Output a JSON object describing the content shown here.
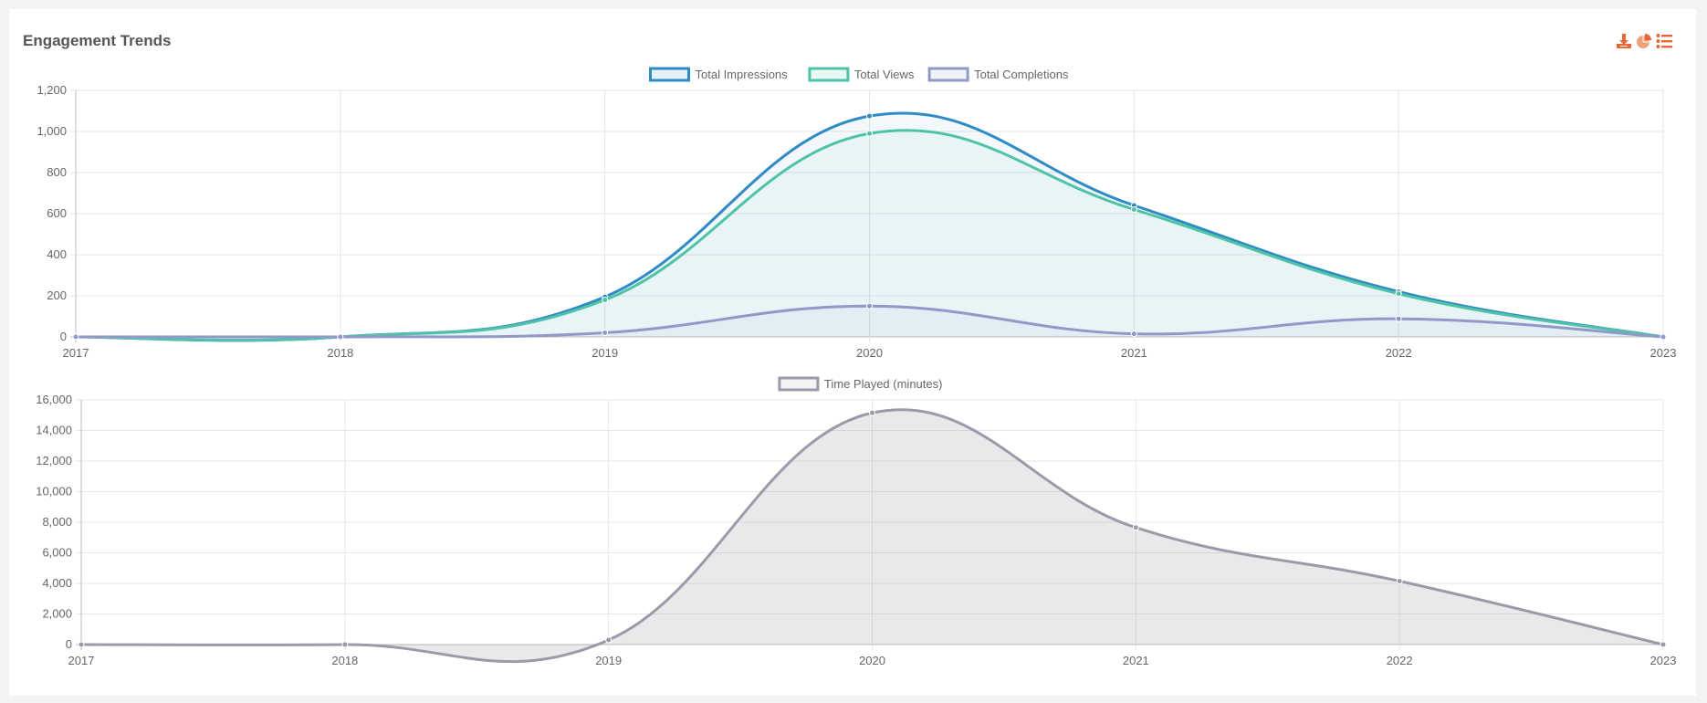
{
  "card": {
    "title": "Engagement Trends"
  },
  "toolbar": {
    "icons": [
      "download-icon",
      "pie-chart-icon",
      "list-icon"
    ],
    "accent": "#e8673a"
  },
  "chart_data": [
    {
      "type": "line",
      "fill": true,
      "x": [
        "2017",
        "2018",
        "2019",
        "2020",
        "2021",
        "2022",
        "2023"
      ],
      "series": [
        {
          "name": "Total Impressions",
          "color": "#2e8bc5",
          "values": [
            0,
            0,
            195,
            1075,
            640,
            220,
            0
          ]
        },
        {
          "name": "Total Views",
          "color": "#4fc3a8",
          "values": [
            0,
            0,
            180,
            990,
            620,
            210,
            0
          ]
        },
        {
          "name": "Total Completions",
          "color": "#9099c8",
          "values": [
            0,
            0,
            20,
            150,
            15,
            88,
            0
          ]
        }
      ],
      "ylim": [
        0,
        1200
      ],
      "yticks": [
        0,
        200,
        400,
        600,
        800,
        1000,
        1200
      ],
      "ytick_labels": [
        "0",
        "200",
        "400",
        "600",
        "800",
        "1,000",
        "1,200"
      ],
      "grid": true,
      "legend": "top-center"
    },
    {
      "type": "area",
      "x": [
        "2017",
        "2018",
        "2019",
        "2020",
        "2021",
        "2022",
        "2023"
      ],
      "series": [
        {
          "name": "Time Played (minutes)",
          "color": "#9a9ba8",
          "values": [
            0,
            0,
            300,
            15150,
            7650,
            4150,
            0
          ]
        }
      ],
      "ylim": [
        0,
        16000
      ],
      "yticks": [
        0,
        2000,
        4000,
        6000,
        8000,
        10000,
        12000,
        14000,
        16000
      ],
      "ytick_labels": [
        "0",
        "2,000",
        "4,000",
        "6,000",
        "8,000",
        "10,000",
        "12,000",
        "14,000",
        "16,000"
      ],
      "grid": true,
      "legend": "top-center"
    }
  ]
}
